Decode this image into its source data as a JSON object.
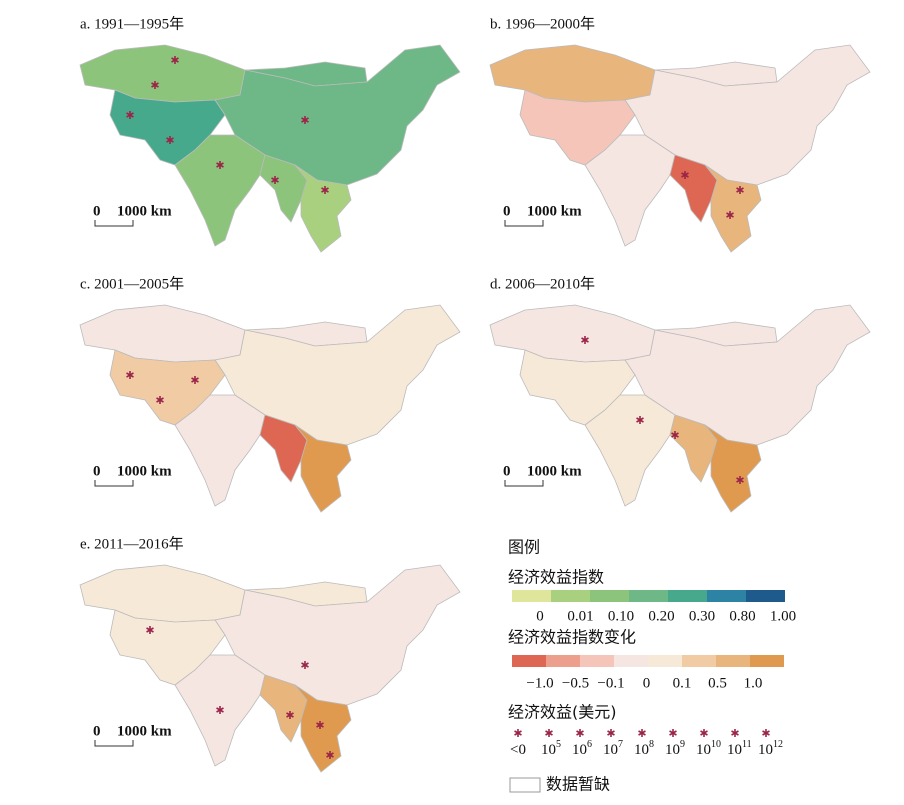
{
  "panels": [
    {
      "title": "a. 1991—1995年",
      "scale_zero": "0",
      "scale_label": "1000 km"
    },
    {
      "title": "b. 1996—2000年",
      "scale_zero": "0",
      "scale_label": "1000 km"
    },
    {
      "title": "c. 2001—2005年",
      "scale_zero": "0",
      "scale_label": "1000 km"
    },
    {
      "title": "d. 2006—2010年",
      "scale_zero": "0",
      "scale_label": "1000 km"
    },
    {
      "title": "e. 2011—2016年",
      "scale_zero": "0",
      "scale_label": "1000 km"
    }
  ],
  "legend": {
    "title": "图例",
    "index": {
      "title": "经济效益指数",
      "labels": [
        "0",
        "0.01",
        "0.10",
        "0.20",
        "0.30",
        "0.80",
        "1.00"
      ],
      "colors": [
        "#dfe59a",
        "#a9d07f",
        "#8cc47c",
        "#6db886",
        "#47a98c",
        "#2c83a3",
        "#1f5a8c"
      ]
    },
    "change": {
      "title": "经济效益指数变化",
      "labels": [
        "−1.0",
        "−0.5",
        "−0.1",
        "0",
        "0.1",
        "0.5",
        "1.0"
      ],
      "colors": [
        "#dd6753",
        "#ec9f8c",
        "#f4c5b8",
        "#f5e6e2",
        "#f7e9d8",
        "#f0cba3",
        "#e8b57c",
        "#e09a4f"
      ]
    },
    "benefit": {
      "title": "经济效益(美元)",
      "star_color": "#9b2448",
      "labels": [
        {
          "base": "<0"
        },
        {
          "base": "10",
          "exp": "5"
        },
        {
          "base": "10",
          "exp": "6"
        },
        {
          "base": "10",
          "exp": "7"
        },
        {
          "base": "10",
          "exp": "8"
        },
        {
          "base": "10",
          "exp": "9"
        },
        {
          "base": "10",
          "exp": "10"
        },
        {
          "base": "10",
          "exp": "11"
        },
        {
          "base": "10",
          "exp": "12"
        }
      ]
    },
    "missing": "数据暂缺"
  }
}
